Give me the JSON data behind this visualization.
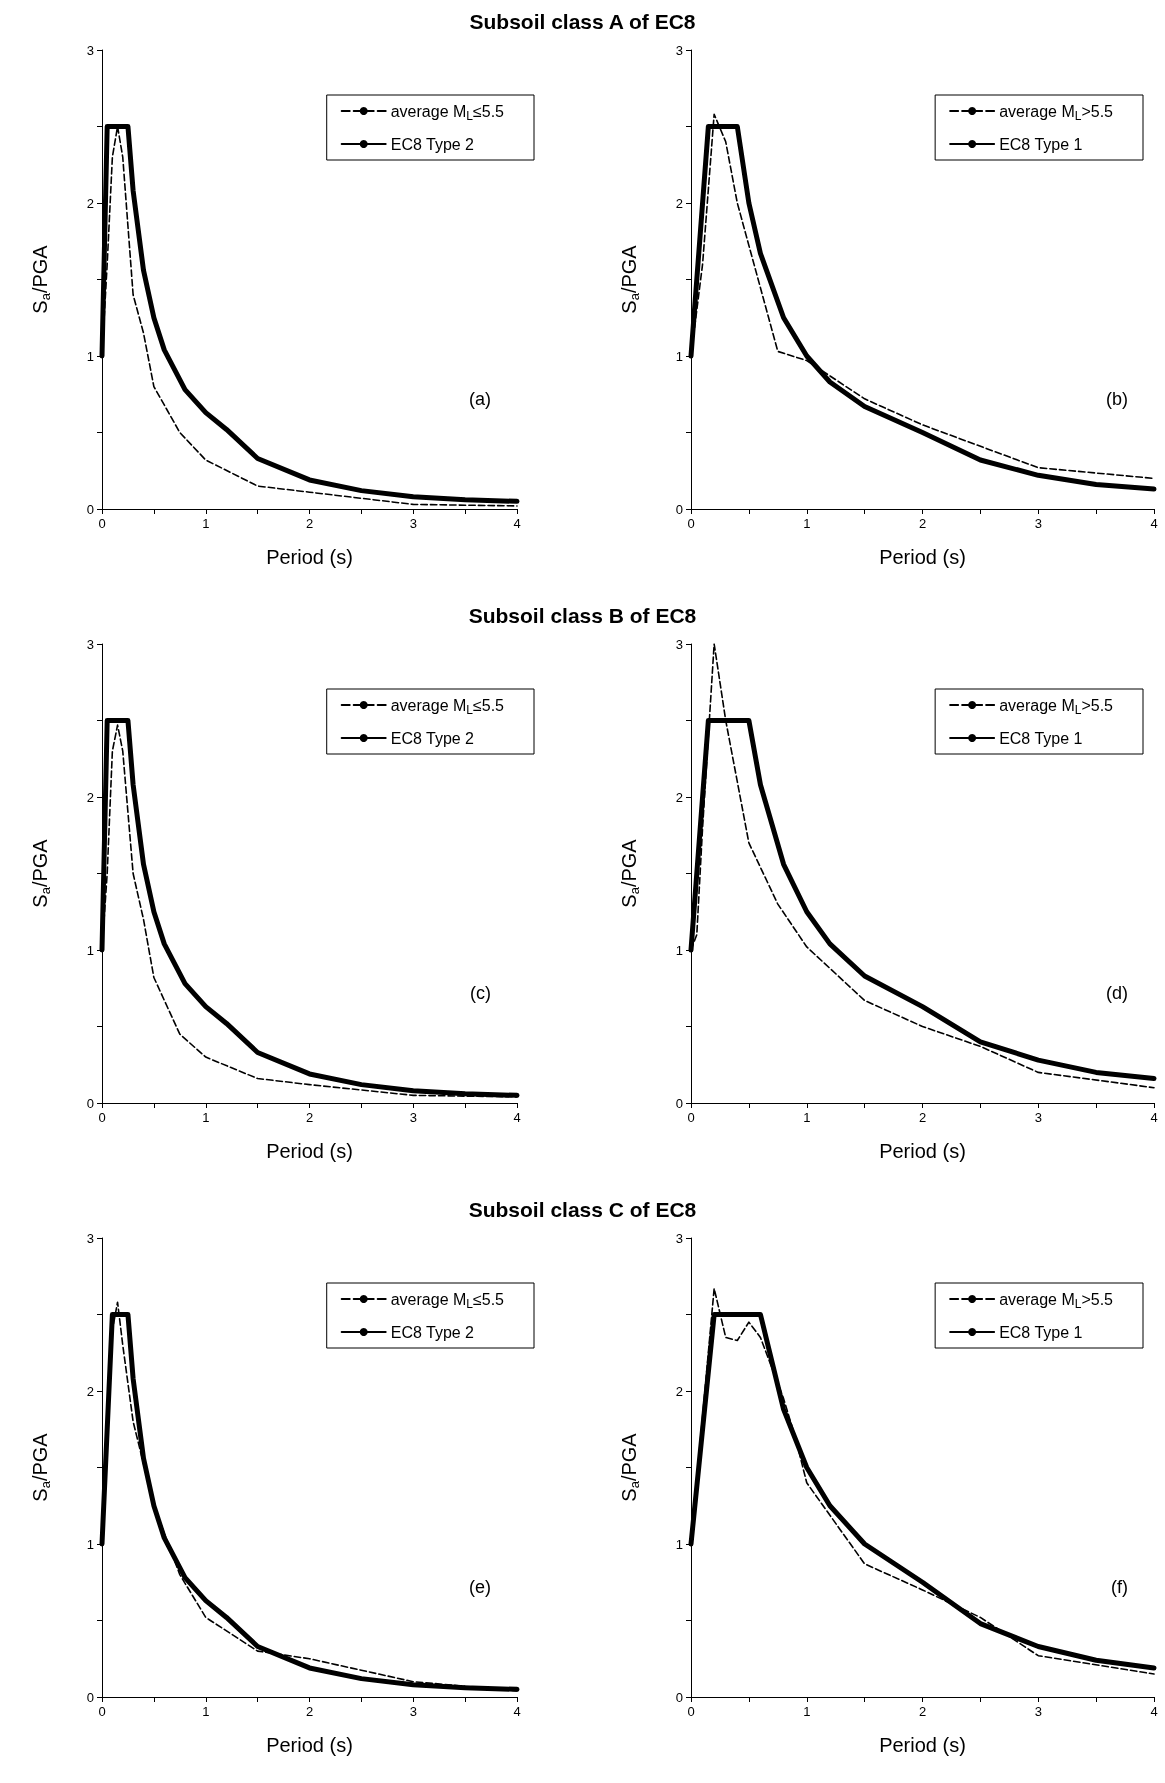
{
  "chart_data": [
    {
      "type": "line",
      "title": "Subsoil class A of EC8",
      "xlabel": "Period (s)",
      "ylabel": "S$_{a}$/PGA",
      "annotations": [
        "(a)"
      ],
      "xlim": [
        0,
        4
      ],
      "ylim": [
        0,
        3
      ],
      "xticks": [
        0,
        {
          "value": 0.5,
          "label": null
        },
        1,
        {
          "value": 1.5,
          "label": null
        },
        2,
        {
          "value": 2.5,
          "label": null
        },
        3,
        {
          "value": 3.5,
          "label": null
        },
        4
      ],
      "yticks": [
        0,
        {
          "value": 0.5,
          "label": null
        },
        1,
        {
          "value": 1.5,
          "label": null
        },
        2,
        {
          "value": 2.5,
          "label": null
        },
        3
      ],
      "legend": "top right",
      "series": [
        {
          "name": "average M$_{L}$≤5.5",
          "color": "#000000",
          "line_style": "dashed",
          "x": [
            0,
            0.05,
            0.1,
            0.15,
            0.2,
            0.3,
            0.4,
            0.5,
            0.75,
            1,
            1.5,
            2,
            3,
            4
          ],
          "values": [
            1,
            1.6,
            2.3,
            2.5,
            2.3,
            1.4,
            1.15,
            0.8,
            0.5,
            0.32,
            0.15,
            0.11,
            0.03,
            0.02
          ]
        },
        {
          "name": "EC8 Type 2",
          "color": "#000000",
          "line_style": "solid",
          "x": [
            0,
            0.05,
            0.25,
            0.3,
            0.4,
            0.5,
            0.6,
            0.8,
            1,
            1.2,
            1.5,
            2,
            2.5,
            3,
            3.5,
            4
          ],
          "values": [
            1,
            2.5,
            2.5,
            2.08,
            1.56,
            1.25,
            1.04,
            0.78,
            0.63,
            0.52,
            0.33,
            0.19,
            0.12,
            0.08,
            0.06,
            0.05
          ]
        }
      ]
    },
    {
      "type": "line",
      "xlabel": "Period (s)",
      "ylabel": "S$_{a}$/PGA",
      "annotations": [
        "(b)"
      ],
      "xlim": [
        0,
        4
      ],
      "ylim": [
        0,
        3
      ],
      "xticks": [
        0,
        {
          "value": 0.5,
          "label": null
        },
        1,
        {
          "value": 1.5,
          "label": null
        },
        2,
        {
          "value": 2.5,
          "label": null
        },
        3,
        {
          "value": 3.5,
          "label": null
        },
        4
      ],
      "yticks": [
        0,
        {
          "value": 0.5,
          "label": null
        },
        1,
        {
          "value": 1.5,
          "label": null
        },
        2,
        {
          "value": 2.5,
          "label": null
        },
        3
      ],
      "legend": "top right",
      "series": [
        {
          "name": "average M$_{L}$>5.5",
          "color": "#000000",
          "line_style": "dashed",
          "x": [
            0,
            0.1,
            0.2,
            0.3,
            0.4,
            0.75,
            1,
            1.5,
            2,
            3,
            4
          ],
          "values": [
            1,
            1.6,
            2.58,
            2.4,
            2,
            1.03,
            0.97,
            0.72,
            0.55,
            0.27,
            0.2
          ]
        },
        {
          "name": "EC8 Type 1",
          "color": "#000000",
          "line_style": "solid",
          "x": [
            0,
            0.15,
            0.4,
            0.5,
            0.6,
            0.8,
            1,
            1.2,
            1.5,
            2,
            2.5,
            3,
            3.5,
            4
          ],
          "values": [
            1,
            2.5,
            2.5,
            2,
            1.67,
            1.25,
            1,
            0.83,
            0.67,
            0.5,
            0.32,
            0.22,
            0.16,
            0.13
          ]
        }
      ]
    },
    {
      "type": "line",
      "title": "Subsoil class B of EC8",
      "xlabel": "Period (s)",
      "ylabel": "S$_{a}$/PGA",
      "annotations": [
        "(c)"
      ],
      "xlim": [
        0,
        4
      ],
      "ylim": [
        0,
        3
      ],
      "xticks": [
        0,
        {
          "value": 0.5,
          "label": null
        },
        1,
        {
          "value": 1.5,
          "label": null
        },
        2,
        {
          "value": 2.5,
          "label": null
        },
        3,
        {
          "value": 3.5,
          "label": null
        },
        4
      ],
      "yticks": [
        0,
        {
          "value": 0.5,
          "label": null
        },
        1,
        {
          "value": 1.5,
          "label": null
        },
        2,
        {
          "value": 2.5,
          "label": null
        },
        3
      ],
      "legend": "top right",
      "series": [
        {
          "name": "average M$_{L}$≤5.5",
          "color": "#000000",
          "line_style": "dashed",
          "x": [
            0,
            0.05,
            0.1,
            0.15,
            0.2,
            0.3,
            0.4,
            0.5,
            0.75,
            1,
            1.5,
            2,
            3,
            4
          ],
          "values": [
            1,
            1.5,
            2.3,
            2.47,
            2.3,
            1.5,
            1.2,
            0.82,
            0.45,
            0.3,
            0.16,
            0.12,
            0.05,
            0.04
          ]
        },
        {
          "name": "EC8 Type 2",
          "color": "#000000",
          "line_style": "solid",
          "x": [
            0,
            0.05,
            0.25,
            0.3,
            0.4,
            0.5,
            0.6,
            0.8,
            1,
            1.2,
            1.5,
            2,
            2.5,
            3,
            3.5,
            4
          ],
          "values": [
            1,
            2.5,
            2.5,
            2.08,
            1.56,
            1.25,
            1.04,
            0.78,
            0.63,
            0.52,
            0.33,
            0.19,
            0.12,
            0.08,
            0.06,
            0.05
          ]
        }
      ]
    },
    {
      "type": "line",
      "xlabel": "Period (s)",
      "ylabel": "S$_{a}$/PGA",
      "annotations": [
        "(d)"
      ],
      "xlim": [
        0,
        4
      ],
      "ylim": [
        0,
        3
      ],
      "xticks": [
        0,
        {
          "value": 0.5,
          "label": null
        },
        1,
        {
          "value": 1.5,
          "label": null
        },
        2,
        {
          "value": 2.5,
          "label": null
        },
        3,
        {
          "value": 3.5,
          "label": null
        },
        4
      ],
      "yticks": [
        0,
        {
          "value": 0.5,
          "label": null
        },
        1,
        {
          "value": 1.5,
          "label": null
        },
        2,
        {
          "value": 2.5,
          "label": null
        },
        3
      ],
      "legend": "top right",
      "series": [
        {
          "name": "average M$_{L}$>5.5",
          "color": "#000000",
          "line_style": "dashed",
          "x": [
            0,
            0.05,
            0.1,
            0.2,
            0.3,
            0.4,
            0.5,
            0.75,
            1,
            1.5,
            2,
            2.5,
            3,
            4
          ],
          "values": [
            1,
            1.1,
            1.8,
            3,
            2.5,
            2.1,
            1.7,
            1.3,
            1.02,
            0.67,
            0.5,
            0.37,
            0.2,
            0.1
          ]
        },
        {
          "name": "EC8 Type 1",
          "color": "#000000",
          "line_style": "solid",
          "x": [
            0,
            0.15,
            0.5,
            0.6,
            0.8,
            1,
            1.2,
            1.5,
            2,
            2.5,
            3,
            3.5,
            4
          ],
          "values": [
            1,
            2.5,
            2.5,
            2.08,
            1.56,
            1.25,
            1.04,
            0.83,
            0.63,
            0.4,
            0.28,
            0.2,
            0.16
          ]
        }
      ]
    },
    {
      "type": "line",
      "title": "Subsoil class C of EC8",
      "xlabel": "Period (s)",
      "ylabel": "S$_{a}$/PGA",
      "annotations": [
        "(e)"
      ],
      "xlim": [
        0,
        4
      ],
      "ylim": [
        0,
        3
      ],
      "xticks": [
        0,
        {
          "value": 0.5,
          "label": null
        },
        1,
        {
          "value": 1.5,
          "label": null
        },
        2,
        {
          "value": 2.5,
          "label": null
        },
        3,
        {
          "value": 3.5,
          "label": null
        },
        4
      ],
      "yticks": [
        0,
        {
          "value": 0.5,
          "label": null
        },
        1,
        {
          "value": 1.5,
          "label": null
        },
        2,
        {
          "value": 2.5,
          "label": null
        },
        3
      ],
      "legend": "top right",
      "series": [
        {
          "name": "average M$_{L}$≤5.5",
          "color": "#000000",
          "line_style": "dashed",
          "x": [
            0,
            0.1,
            0.15,
            0.2,
            0.3,
            0.5,
            0.75,
            1,
            1.5,
            2,
            3,
            4
          ],
          "values": [
            1,
            2.4,
            2.58,
            2.3,
            1.8,
            1.25,
            0.8,
            0.52,
            0.3,
            0.25,
            0.1,
            0.04
          ]
        },
        {
          "name": "EC8 Type 2",
          "color": "#000000",
          "line_style": "solid",
          "x": [
            0,
            0.1,
            0.25,
            0.3,
            0.4,
            0.5,
            0.6,
            0.8,
            1,
            1.2,
            1.5,
            2,
            2.5,
            3,
            3.5,
            4
          ],
          "values": [
            1,
            2.5,
            2.5,
            2.08,
            1.56,
            1.25,
            1.04,
            0.78,
            0.63,
            0.52,
            0.33,
            0.19,
            0.12,
            0.08,
            0.06,
            0.05
          ]
        }
      ]
    },
    {
      "type": "line",
      "xlabel": "Period (s)",
      "ylabel": "S$_{a}$/PGA",
      "annotations": [
        "(f)"
      ],
      "xlim": [
        0,
        4
      ],
      "ylim": [
        0,
        3
      ],
      "xticks": [
        0,
        {
          "value": 0.5,
          "label": null
        },
        1,
        {
          "value": 1.5,
          "label": null
        },
        2,
        {
          "value": 2.5,
          "label": null
        },
        3,
        {
          "value": 3.5,
          "label": null
        },
        4
      ],
      "yticks": [
        0,
        {
          "value": 0.5,
          "label": null
        },
        1,
        {
          "value": 1.5,
          "label": null
        },
        2,
        {
          "value": 2.5,
          "label": null
        },
        3
      ],
      "legend": "top right",
      "series": [
        {
          "name": "average M$_{L}$>5.5",
          "color": "#000000",
          "line_style": "dashed",
          "x": [
            0,
            0.2,
            0.3,
            0.4,
            0.5,
            0.6,
            0.8,
            0.9,
            1,
            1.5,
            2,
            2.5,
            3,
            4
          ],
          "values": [
            1,
            2.67,
            2.35,
            2.33,
            2.45,
            2.35,
            1.95,
            1.7,
            1.4,
            0.87,
            0.7,
            0.52,
            0.27,
            0.15
          ]
        },
        {
          "name": "EC8 Type 1",
          "color": "#000000",
          "line_style": "solid",
          "x": [
            0,
            0.2,
            0.6,
            0.8,
            1,
            1.2,
            1.5,
            2,
            2.5,
            3,
            3.5,
            4
          ],
          "values": [
            1,
            2.5,
            2.5,
            1.88,
            1.5,
            1.25,
            1,
            0.75,
            0.48,
            0.33,
            0.24,
            0.19
          ]
        }
      ]
    }
  ]
}
